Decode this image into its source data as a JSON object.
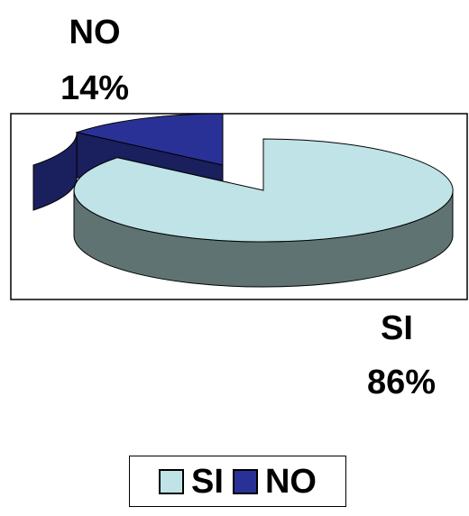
{
  "chart_data": {
    "type": "pie",
    "style": "3d-exploded",
    "categories": [
      "SI",
      "NO"
    ],
    "values": [
      86,
      14
    ],
    "value_labels": [
      "86%",
      "14%"
    ],
    "colors": {
      "SI": "#bfe3e6",
      "SI_side": "#5f7372",
      "NO": "#2a3196",
      "NO_side": "#1a1f5e"
    },
    "legend": {
      "placement": "bottom",
      "items": [
        "SI",
        "NO"
      ]
    }
  }
}
